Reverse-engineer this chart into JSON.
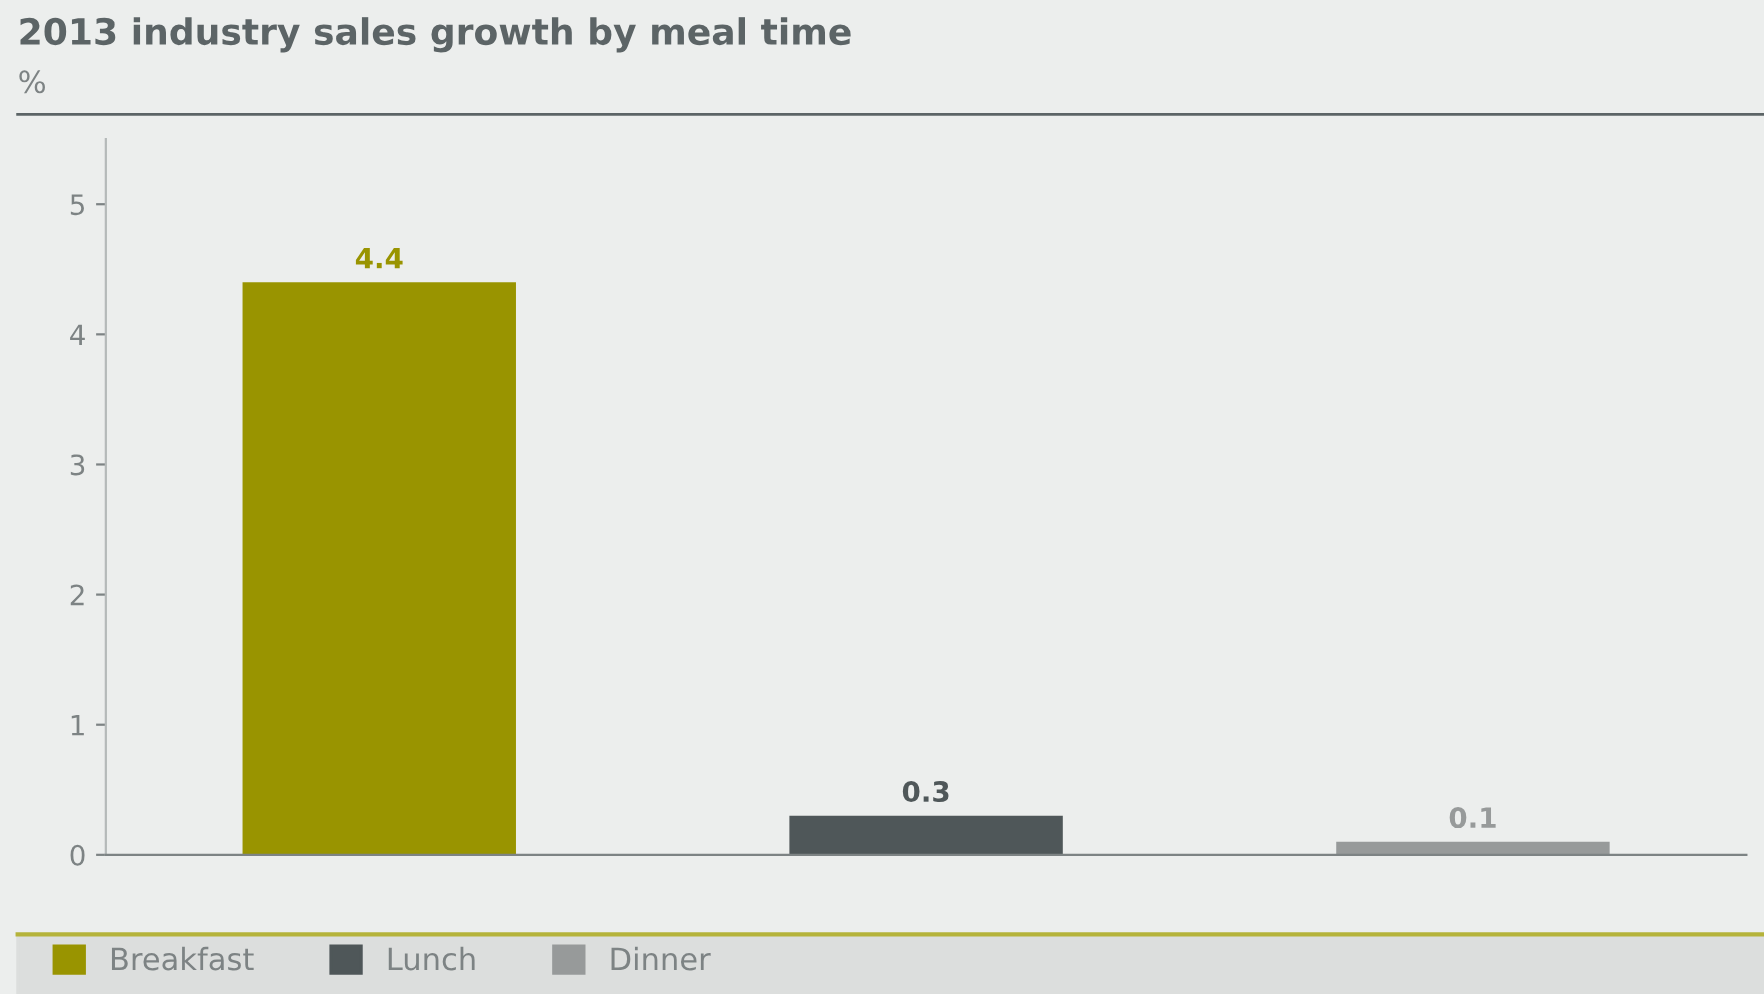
{
  "chart_data": {
    "type": "bar",
    "title": "2013 industry sales growth by meal time",
    "ylabel": "%",
    "categories": [
      null,
      null,
      null
    ],
    "series": [
      {
        "name": "Breakfast",
        "color": "#999400",
        "values": [
          4.4,
          null,
          null
        ]
      },
      {
        "name": "Lunch",
        "color": "#4f5759",
        "values": [
          null,
          0.3,
          null
        ]
      },
      {
        "name": "Dinner",
        "color": "#979a9a",
        "values": [
          null,
          null,
          0.1
        ]
      }
    ],
    "ylim": [
      0,
      5.5
    ],
    "yticks": [
      0,
      1,
      2,
      3,
      4,
      5
    ],
    "data_labels": true,
    "legend": "bottom",
    "grid": false
  }
}
